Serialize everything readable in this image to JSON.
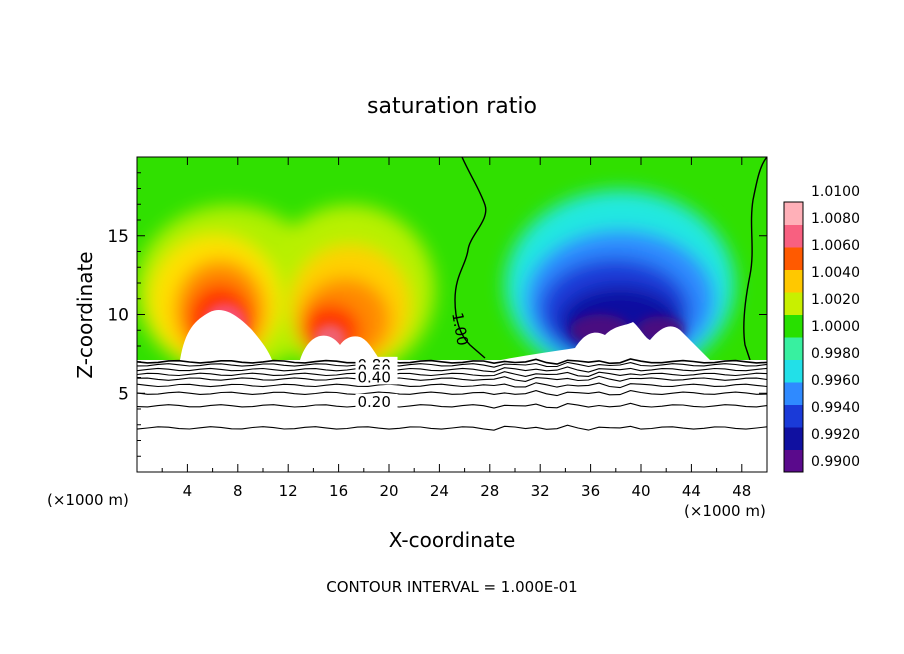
{
  "chart_data": {
    "type": "heatmap",
    "title": "saturation ratio",
    "xlabel": "X-coordinate",
    "ylabel": "Z-coordinate",
    "x_unit_left": "(×1000 m)",
    "x_unit_right": "(×1000 m)",
    "footer": "CONTOUR INTERVAL = 1.000E-01",
    "xlim": [
      0,
      50
    ],
    "ylim": [
      0,
      20
    ],
    "xticks": [
      4,
      8,
      12,
      16,
      20,
      24,
      28,
      32,
      36,
      40,
      44,
      48
    ],
    "xtick_labels": [
      "4",
      "8",
      "12",
      "16",
      "20",
      "24",
      "28",
      "32",
      "36",
      "40",
      "44",
      "48"
    ],
    "yticks": [
      5,
      10,
      15
    ],
    "ytick_labels": [
      "5",
      "10",
      "15"
    ],
    "colorbar": {
      "levels": [
        0.99,
        0.992,
        0.994,
        0.996,
        0.998,
        1.0,
        1.002,
        1.004,
        1.006,
        1.008,
        1.01
      ],
      "labels": [
        "0.9900",
        "0.9920",
        "0.9940",
        "0.9960",
        "0.9980",
        "1.0000",
        "1.0020",
        "1.0040",
        "1.0060",
        "1.0080",
        "1.0100"
      ],
      "colors": [
        "#5a0a8c",
        "#1010a0",
        "#1a3ad8",
        "#2f8aff",
        "#22e0e8",
        "#38f0a0",
        "#28e000",
        "#c8f000",
        "#ffc800",
        "#ff5a00",
        "#f86080",
        "#ffb0b8"
      ]
    },
    "contour_labels": [
      {
        "x": 0.0,
        "value": "1.00"
      },
      {
        "x": 17.5,
        "value": "0.80"
      },
      {
        "x": 17.5,
        "value": "0.60"
      },
      {
        "x": 17.5,
        "value": "0.40"
      },
      {
        "x": 17.5,
        "value": "0.20"
      }
    ],
    "lower_contour_heights": [
      7.0,
      6.8,
      6.5,
      6.2,
      5.9,
      5.5,
      5.0,
      4.2,
      2.8
    ]
  }
}
